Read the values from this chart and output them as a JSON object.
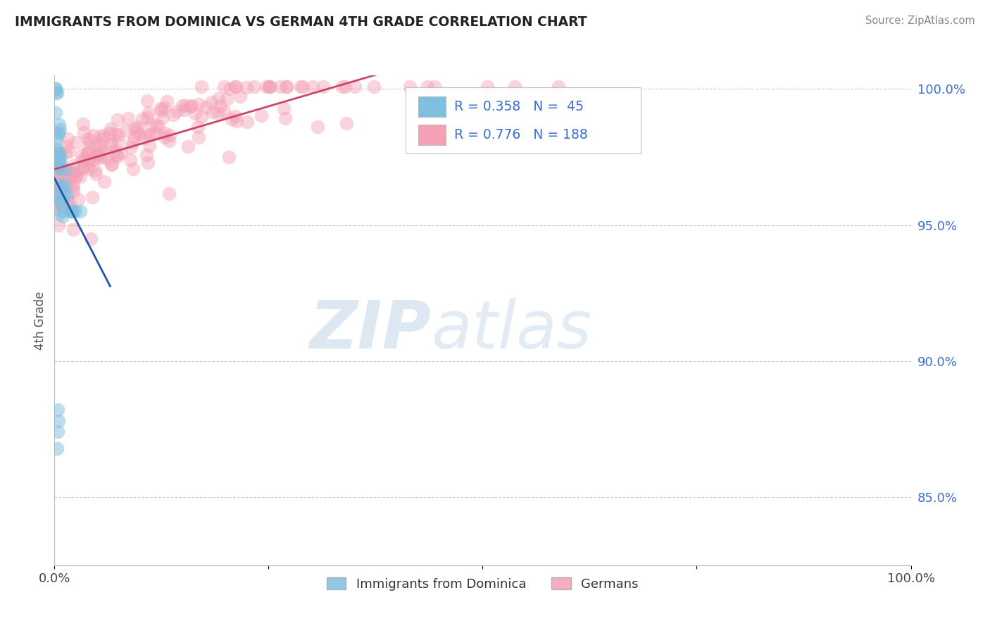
{
  "title": "IMMIGRANTS FROM DOMINICA VS GERMAN 4TH GRADE CORRELATION CHART",
  "source_text": "Source: ZipAtlas.com",
  "ylabel": "4th Grade",
  "legend_entries": [
    "Immigrants from Dominica",
    "Germans"
  ],
  "blue_color": "#7fbfdf",
  "pink_color": "#f4a0b5",
  "blue_line_color": "#2255aa",
  "pink_line_color": "#cc4466",
  "r_blue": 0.358,
  "n_blue": 45,
  "r_pink": 0.776,
  "n_pink": 188,
  "watermark_zip": "ZIP",
  "watermark_atlas": "atlas",
  "background_color": "#ffffff",
  "grid_color": "#cccccc",
  "title_color": "#222222",
  "label_color": "#3a6fcc",
  "xlim": [
    0.0,
    1.0
  ],
  "ylim": [
    0.825,
    1.005
  ],
  "y_ticks": [
    0.85,
    0.9,
    0.95,
    1.0
  ],
  "y_tick_labels": [
    "85.0%",
    "90.0%",
    "95.0%",
    "100.0%"
  ]
}
